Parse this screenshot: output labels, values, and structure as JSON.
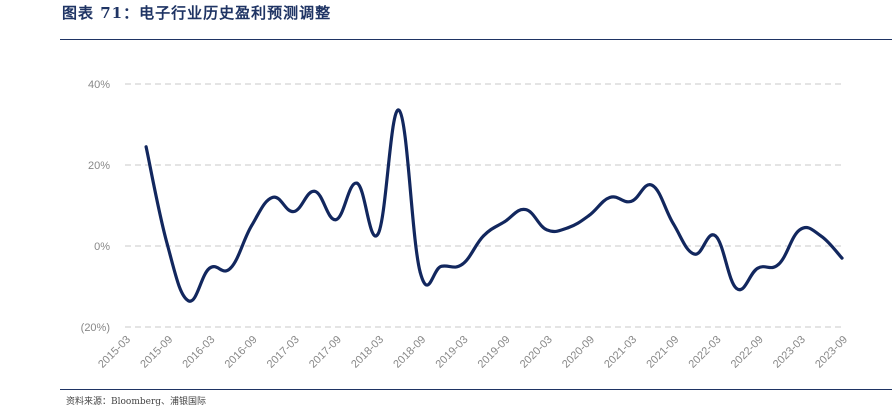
{
  "header": {
    "title": "图表 71：电子行业历史盈利预测调整"
  },
  "footer": {
    "source": "资料来源：Bloomberg、浦银国际"
  },
  "colors": {
    "line": "#12275e",
    "grid": "#c8c8c8",
    "title": "#1f3464"
  },
  "chart_data": {
    "type": "line",
    "title": "",
    "xlabel": "",
    "ylabel": "",
    "ylim": [
      -20,
      40
    ],
    "yticks": [
      40,
      20,
      0,
      -20
    ],
    "ytick_labels": [
      "40%",
      "20%",
      "0%",
      "(20%)"
    ],
    "xtick_labels": [
      "2015-03",
      "2015-09",
      "2016-03",
      "2016-09",
      "2017-03",
      "2017-09",
      "2018-03",
      "2018-09",
      "2019-03",
      "2019-09",
      "2020-03",
      "2020-09",
      "2021-03",
      "2021-09",
      "2022-03",
      "2022-09",
      "2023-03",
      "2023-09"
    ],
    "grid": true,
    "legend": "none",
    "series": [
      {
        "x": [
          "2015-06",
          "2015-09",
          "2015-12",
          "2016-03",
          "2016-06",
          "2016-09",
          "2016-12",
          "2017-03",
          "2017-06",
          "2017-09",
          "2017-12",
          "2018-03",
          "2018-06",
          "2018-09",
          "2018-12",
          "2019-03",
          "2019-06",
          "2019-09",
          "2019-12",
          "2020-03",
          "2020-06",
          "2020-09",
          "2020-12",
          "2021-03",
          "2021-06",
          "2021-09",
          "2021-12",
          "2022-03",
          "2022-06",
          "2022-09",
          "2022-12",
          "2023-03",
          "2023-06",
          "2023-09"
        ],
        "values": [
          24.5,
          0.5,
          -13.5,
          -5.5,
          -5.5,
          5.0,
          12.0,
          8.5,
          13.5,
          6.5,
          15.5,
          3.0,
          33.5,
          -6.5,
          -5.0,
          -4.5,
          2.5,
          6.0,
          9.0,
          4.0,
          4.5,
          7.5,
          12.0,
          11.0,
          15.0,
          5.5,
          -2.0,
          2.5,
          -10.5,
          -5.5,
          -4.5,
          4.0,
          2.5,
          -3.0
        ]
      }
    ]
  }
}
